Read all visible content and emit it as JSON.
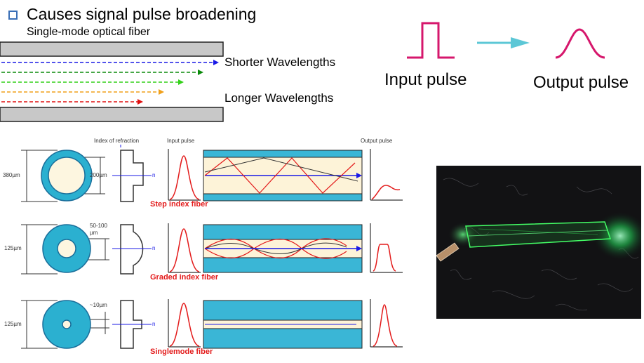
{
  "header": {
    "title": "Causes signal pulse broadening",
    "subtitle": "Single-mode optical fiber"
  },
  "wavelengths": {
    "shorter_label": "Shorter Wavelengths",
    "longer_label": "Longer Wavelengths",
    "ray_colors": [
      "#1a1ae6",
      "#0a8a0a",
      "#34d11a",
      "#f0a01a",
      "#e01010"
    ]
  },
  "pulse": {
    "input_label": "Input pulse",
    "output_label": "Output pulse",
    "pulse_color": "#d6176c",
    "arrow_color": "#5cc7d6"
  },
  "fiber_diagram": {
    "index_label": "Index of refraction",
    "input_pulse_label": "Input pulse",
    "output_pulse_label": "Output pulse",
    "axis_n": "n",
    "rows": [
      {
        "caption": "Step index fiber",
        "outer_dim": "380µm",
        "core_dim": "200µm"
      },
      {
        "caption": "Graded index fiber",
        "outer_dim": "125µm",
        "core_dim_1": "50-100",
        "core_dim_2": "µm"
      },
      {
        "caption": "Singlemode fiber",
        "outer_dim": "125µm",
        "core_dim": "~10µm"
      }
    ]
  }
}
